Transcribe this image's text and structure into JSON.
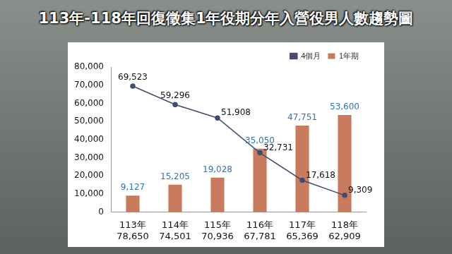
{
  "chart_data": {
    "type": "bar",
    "title": "113年-118年回復徵集1年役期分年入營役男人數趨勢圖",
    "categories": [
      [
        "113年",
        "78,650"
      ],
      [
        "114年",
        "74,501"
      ],
      [
        "115年",
        "70,936"
      ],
      [
        "116年",
        "67,781"
      ],
      [
        "117年",
        "65,369"
      ],
      [
        "118年",
        "62,909"
      ]
    ],
    "series": [
      {
        "name": "1年期",
        "type": "bar",
        "color": "#c97b5d",
        "values": [
          9127,
          15205,
          19028,
          35050,
          47751,
          53600
        ],
        "value_labels": [
          "9,127",
          "15,205",
          "19,028",
          "35,050",
          "47,751",
          "53,600"
        ]
      },
      {
        "name": "4個月",
        "type": "line",
        "color": "#3f4d6e",
        "marker": "circle",
        "line_style": "solid",
        "values": [
          69523,
          59296,
          51908,
          32731,
          17618,
          9309
        ],
        "value_labels": [
          "69,523",
          "59,296",
          "51,908",
          "32,731",
          "17,618",
          "9,309"
        ]
      }
    ],
    "ylim": [
      0,
      80000
    ],
    "yticks": [
      0,
      {
        "value": 10000,
        "label": "10,000"
      },
      {
        "value": 20000,
        "label": "20,000"
      },
      {
        "value": 30000,
        "label": "30,000"
      },
      {
        "value": 40000,
        "label": "40,000"
      },
      {
        "value": 50000,
        "label": "50,000"
      },
      {
        "value": 60000,
        "label": "60,000"
      },
      {
        "value": 70000,
        "label": "70,000"
      },
      {
        "value": 80000,
        "label": "80,000"
      }
    ],
    "grid": false,
    "legend": "top-right",
    "data_labels": true
  }
}
